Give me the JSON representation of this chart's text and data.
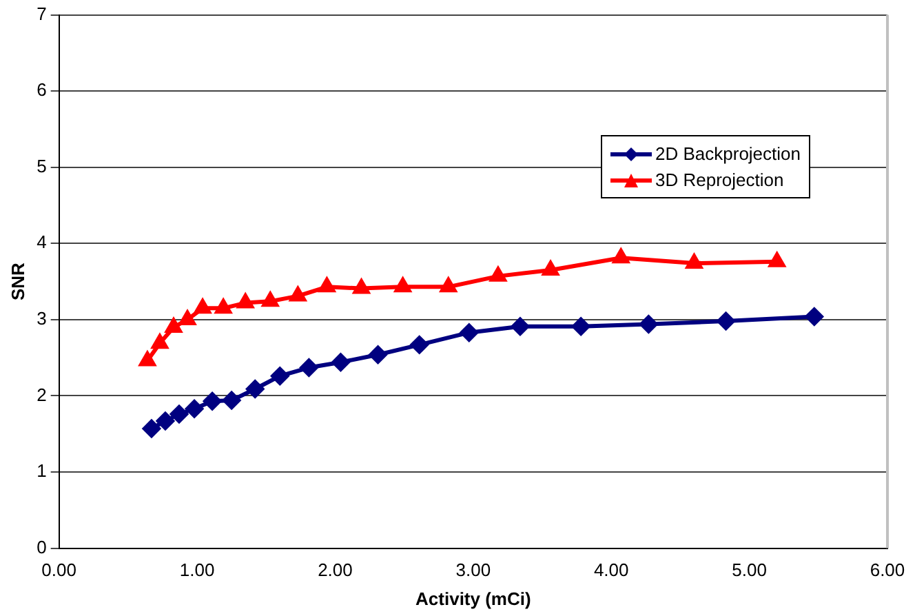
{
  "chart_data": {
    "type": "line",
    "xlabel": "Activity (mCi)",
    "ylabel": "SNR",
    "xlim": [
      0,
      6
    ],
    "xticks": [
      {
        "value": 0,
        "label": "0.00"
      },
      {
        "value": 1,
        "label": "1.00"
      },
      {
        "value": 2,
        "label": "2.00"
      },
      {
        "value": 3,
        "label": "3.00"
      },
      {
        "value": 4,
        "label": "4.00"
      },
      {
        "value": 5,
        "label": "5.00"
      },
      {
        "value": 6,
        "label": "6.00"
      }
    ],
    "ylim": [
      0,
      7
    ],
    "yticks": [
      0,
      1,
      2,
      3,
      4,
      5,
      6,
      7
    ],
    "grid": "y",
    "legend": "top right",
    "series": [
      {
        "name": "2D Backprojection",
        "color": "#000080",
        "marker": "diamond",
        "x": [
          0.67,
          0.77,
          0.87,
          0.98,
          1.11,
          1.25,
          1.42,
          1.6,
          1.81,
          2.04,
          2.31,
          2.61,
          2.97,
          3.34,
          3.78,
          4.27,
          4.83,
          5.47
        ],
        "values": [
          1.57,
          1.67,
          1.76,
          1.83,
          1.93,
          1.94,
          2.09,
          2.26,
          2.37,
          2.44,
          2.54,
          2.67,
          2.83,
          2.91,
          2.91,
          2.94,
          2.98,
          3.04
        ]
      },
      {
        "name": "3D Reprojection",
        "color": "#ff0000",
        "marker": "triangle",
        "x": [
          0.64,
          0.73,
          0.83,
          0.93,
          1.04,
          1.19,
          1.35,
          1.53,
          1.73,
          1.94,
          2.19,
          2.49,
          2.82,
          3.18,
          3.56,
          4.07,
          4.6,
          5.2
        ],
        "values": [
          2.46,
          2.69,
          2.9,
          3.0,
          3.15,
          3.15,
          3.22,
          3.24,
          3.31,
          3.43,
          3.41,
          3.43,
          3.43,
          3.57,
          3.65,
          3.81,
          3.74,
          3.76
        ]
      }
    ]
  }
}
